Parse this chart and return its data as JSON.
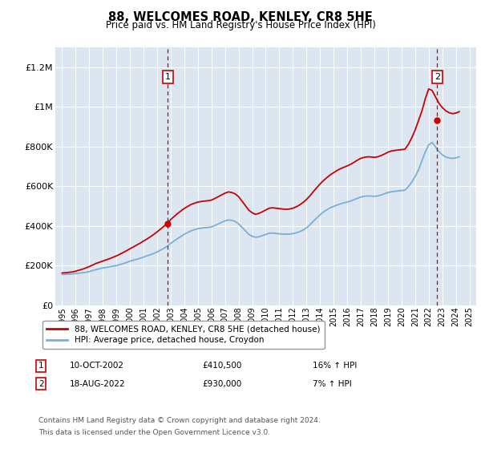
{
  "title": "88, WELCOMES ROAD, KENLEY, CR8 5HE",
  "subtitle": "Price paid vs. HM Land Registry's House Price Index (HPI)",
  "legend_line1": "88, WELCOMES ROAD, KENLEY, CR8 5HE (detached house)",
  "legend_line2": "HPI: Average price, detached house, Croydon",
  "sale1_label": "1",
  "sale1_date": "10-OCT-2002",
  "sale1_price": "£410,500",
  "sale1_hpi": "16% ↑ HPI",
  "sale1_x": 2002.78,
  "sale1_y": 410500,
  "sale2_label": "2",
  "sale2_date": "18-AUG-2022",
  "sale2_price": "£930,000",
  "sale2_hpi": "7% ↑ HPI",
  "sale2_x": 2022.63,
  "sale2_y": 930000,
  "footer1": "Contains HM Land Registry data © Crown copyright and database right 2024.",
  "footer2": "This data is licensed under the Open Government Licence v3.0.",
  "red_color": "#cc0000",
  "blue_color": "#7bafd4",
  "background_color": "#dce6f1",
  "ylim": [
    0,
    1300000
  ],
  "xlim_start": 1994.5,
  "xlim_end": 2025.5,
  "hpi_years": [
    1995,
    1995.25,
    1995.5,
    1995.75,
    1996,
    1996.25,
    1996.5,
    1996.75,
    1997,
    1997.25,
    1997.5,
    1997.75,
    1998,
    1998.25,
    1998.5,
    1998.75,
    1999,
    1999.25,
    1999.5,
    1999.75,
    2000,
    2000.25,
    2000.5,
    2000.75,
    2001,
    2001.25,
    2001.5,
    2001.75,
    2002,
    2002.25,
    2002.5,
    2002.75,
    2003,
    2003.25,
    2003.5,
    2003.75,
    2004,
    2004.25,
    2004.5,
    2004.75,
    2005,
    2005.25,
    2005.5,
    2005.75,
    2006,
    2006.25,
    2006.5,
    2006.75,
    2007,
    2007.25,
    2007.5,
    2007.75,
    2008,
    2008.25,
    2008.5,
    2008.75,
    2009,
    2009.25,
    2009.5,
    2009.75,
    2010,
    2010.25,
    2010.5,
    2010.75,
    2011,
    2011.25,
    2011.5,
    2011.75,
    2012,
    2012.25,
    2012.5,
    2012.75,
    2013,
    2013.25,
    2013.5,
    2013.75,
    2014,
    2014.25,
    2014.5,
    2014.75,
    2015,
    2015.25,
    2015.5,
    2015.75,
    2016,
    2016.25,
    2016.5,
    2016.75,
    2017,
    2017.25,
    2017.5,
    2017.75,
    2018,
    2018.25,
    2018.5,
    2018.75,
    2019,
    2019.25,
    2019.5,
    2019.75,
    2020,
    2020.25,
    2020.5,
    2020.75,
    2021,
    2021.25,
    2021.5,
    2021.75,
    2022,
    2022.25,
    2022.5,
    2022.75,
    2023,
    2023.25,
    2023.5,
    2023.75,
    2024,
    2024.25
  ],
  "hpi_values": [
    155000,
    156000,
    157000,
    158000,
    160000,
    162000,
    164000,
    166000,
    170000,
    175000,
    180000,
    184000,
    188000,
    191000,
    194000,
    197000,
    200000,
    205000,
    210000,
    216000,
    222000,
    227000,
    232000,
    237000,
    243000,
    249000,
    255000,
    261000,
    269000,
    278000,
    287000,
    298000,
    312000,
    324000,
    336000,
    347000,
    358000,
    367000,
    375000,
    381000,
    386000,
    389000,
    391000,
    392000,
    395000,
    402000,
    410000,
    418000,
    425000,
    430000,
    428000,
    422000,
    410000,
    393000,
    375000,
    357000,
    348000,
    343000,
    345000,
    351000,
    357000,
    363000,
    364000,
    362000,
    360000,
    359000,
    358000,
    359000,
    361000,
    365000,
    371000,
    379000,
    390000,
    405000,
    423000,
    440000,
    456000,
    470000,
    481000,
    491000,
    498000,
    505000,
    511000,
    516000,
    520000,
    525000,
    532000,
    539000,
    545000,
    549000,
    551000,
    550000,
    549000,
    551000,
    556000,
    562000,
    568000,
    572000,
    574000,
    576000,
    578000,
    580000,
    597000,
    620000,
    648000,
    682000,
    727000,
    772000,
    808000,
    820000,
    798000,
    775000,
    758000,
    747000,
    742000,
    740000,
    742000,
    748000
  ],
  "red_years": [
    1995,
    1995.25,
    1995.5,
    1995.75,
    1996,
    1996.25,
    1996.5,
    1996.75,
    1997,
    1997.25,
    1997.5,
    1997.75,
    1998,
    1998.25,
    1998.5,
    1998.75,
    1999,
    1999.25,
    1999.5,
    1999.75,
    2000,
    2000.25,
    2000.5,
    2000.75,
    2001,
    2001.25,
    2001.5,
    2001.75,
    2002,
    2002.25,
    2002.5,
    2002.75,
    2003,
    2003.25,
    2003.5,
    2003.75,
    2004,
    2004.25,
    2004.5,
    2004.75,
    2005,
    2005.25,
    2005.5,
    2005.75,
    2006,
    2006.25,
    2006.5,
    2006.75,
    2007,
    2007.25,
    2007.5,
    2007.75,
    2008,
    2008.25,
    2008.5,
    2008.75,
    2009,
    2009.25,
    2009.5,
    2009.75,
    2010,
    2010.25,
    2010.5,
    2010.75,
    2011,
    2011.25,
    2011.5,
    2011.75,
    2012,
    2012.25,
    2012.5,
    2012.75,
    2013,
    2013.25,
    2013.5,
    2013.75,
    2014,
    2014.25,
    2014.5,
    2014.75,
    2015,
    2015.25,
    2015.5,
    2015.75,
    2016,
    2016.25,
    2016.5,
    2016.75,
    2017,
    2017.25,
    2017.5,
    2017.75,
    2018,
    2018.25,
    2018.5,
    2018.75,
    2019,
    2019.25,
    2019.5,
    2019.75,
    2020,
    2020.25,
    2020.5,
    2020.75,
    2021,
    2021.25,
    2021.5,
    2021.75,
    2022,
    2022.25,
    2022.5,
    2022.75,
    2023,
    2023.25,
    2023.5,
    2023.75,
    2024,
    2024.25
  ],
  "red_values": [
    163000,
    164000,
    166000,
    168000,
    172000,
    177000,
    182000,
    188000,
    195000,
    203000,
    211000,
    217000,
    223000,
    229000,
    235000,
    242000,
    249000,
    257000,
    266000,
    275000,
    285000,
    294000,
    304000,
    313000,
    324000,
    334000,
    345000,
    357000,
    370000,
    384000,
    398000,
    414000,
    432000,
    447000,
    462000,
    475000,
    488000,
    498000,
    508000,
    514000,
    520000,
    523000,
    525000,
    527000,
    530000,
    538000,
    547000,
    556000,
    565000,
    571000,
    568000,
    561000,
    547000,
    525000,
    502000,
    479000,
    466000,
    458000,
    463000,
    471000,
    480000,
    489000,
    491000,
    489000,
    487000,
    485000,
    483000,
    485000,
    489000,
    496000,
    506000,
    518000,
    533000,
    551000,
    572000,
    592000,
    611000,
    628000,
    643000,
    657000,
    668000,
    679000,
    688000,
    695000,
    702000,
    710000,
    720000,
    731000,
    740000,
    745000,
    748000,
    747000,
    745000,
    748000,
    754000,
    762000,
    771000,
    777000,
    780000,
    782000,
    784000,
    786000,
    810000,
    843000,
    882000,
    930000,
    978000,
    1040000,
    1090000,
    1082000,
    1050000,
    1018000,
    996000,
    980000,
    970000,
    965000,
    968000,
    975000
  ]
}
